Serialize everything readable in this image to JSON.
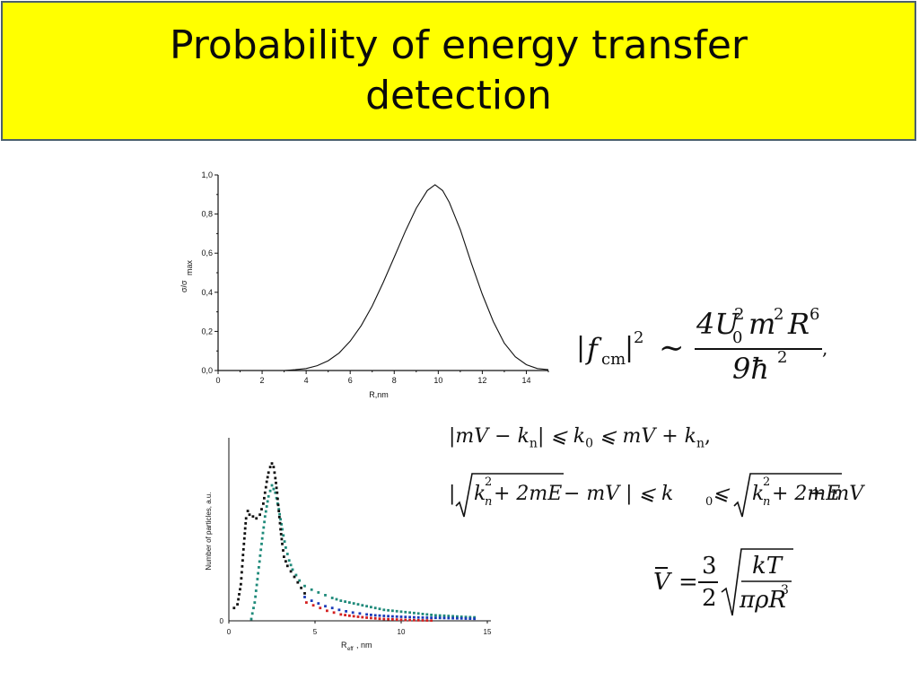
{
  "title": "Probability of energy transfer detection",
  "chart_data": [
    {
      "type": "line",
      "title": "",
      "xlabel": "R,nm",
      "ylabel_main": "σ/σ",
      "ylabel_sub": "max",
      "xlim": [
        0,
        15
      ],
      "ylim": [
        0,
        1.0
      ],
      "x_ticks": [
        0,
        2,
        4,
        6,
        8,
        10,
        12,
        14
      ],
      "x_tick_labels": [
        "0",
        "2",
        "4",
        "6",
        "8",
        "10",
        "12",
        "14"
      ],
      "y_ticks": [
        0,
        0.2,
        0.4,
        0.6,
        0.8,
        1.0
      ],
      "y_tick_labels": [
        "0,0",
        "0,2",
        "0,4",
        "0,6",
        "0,8",
        "1,0"
      ],
      "grid": false,
      "series": [
        {
          "color": "#111111",
          "x": [
            3,
            3.5,
            4,
            4.5,
            5,
            5.5,
            6,
            6.5,
            7,
            7.5,
            8,
            8.5,
            9,
            9.5,
            9.85,
            10.2,
            10.5,
            11,
            11.5,
            12,
            12.5,
            13,
            13.5,
            14,
            14.5,
            15
          ],
          "y": [
            0.0,
            0.004,
            0.01,
            0.025,
            0.05,
            0.09,
            0.15,
            0.23,
            0.33,
            0.45,
            0.58,
            0.71,
            0.83,
            0.92,
            0.95,
            0.92,
            0.86,
            0.72,
            0.55,
            0.39,
            0.25,
            0.14,
            0.07,
            0.03,
            0.01,
            0.004
          ]
        }
      ]
    },
    {
      "type": "scatter",
      "title": "",
      "xlabel": "R",
      "xlabel_sub": "eff",
      "xlabel_unit": ", nm",
      "ylabel": "Number of particles, a.u.",
      "xlim": [
        0,
        15
      ],
      "ylim": [
        0,
        1
      ],
      "x_ticks": [
        0,
        5,
        10,
        15
      ],
      "x_tick_labels": [
        "0",
        "5",
        "10",
        "15"
      ],
      "y_ticks": [
        0
      ],
      "y_tick_labels": [
        "0"
      ],
      "grid": false,
      "series": [
        {
          "color": "#111111",
          "x": [
            0.3,
            0.5,
            0.7,
            0.8,
            0.9,
            1.0,
            1.1,
            1.2,
            1.4,
            1.6,
            1.8,
            2.0,
            2.1,
            2.2,
            2.3,
            2.4,
            2.5,
            2.6,
            2.7,
            2.8,
            2.9,
            3.0,
            3.1,
            3.2,
            3.4,
            3.6,
            3.8,
            4.0,
            4.2,
            4.4,
            4.6
          ],
          "y": [
            0.07,
            0.09,
            0.2,
            0.33,
            0.45,
            0.56,
            0.6,
            0.58,
            0.57,
            0.56,
            0.58,
            0.64,
            0.7,
            0.76,
            0.81,
            0.84,
            0.86,
            0.84,
            0.78,
            0.7,
            0.6,
            0.5,
            0.42,
            0.35,
            0.3,
            0.27,
            0.24,
            0.21,
            0.18,
            0.15,
            0.13
          ]
        },
        {
          "color": "#1f8a7a",
          "x": [
            1.3,
            1.5,
            1.7,
            1.9,
            2.1,
            2.3,
            2.5,
            2.7,
            2.9,
            3.1,
            3.3,
            3.5,
            3.7,
            3.9,
            4.1,
            4.4,
            4.8,
            5.2,
            5.6,
            6.0,
            6.5,
            7.0,
            7.5,
            8.0,
            8.5,
            9.0,
            9.5,
            10.0,
            10.5,
            11.0,
            11.5,
            12.0,
            12.5,
            13.0,
            13.5,
            14.0,
            14.5
          ],
          "y": [
            0.01,
            0.1,
            0.26,
            0.42,
            0.57,
            0.68,
            0.74,
            0.7,
            0.61,
            0.5,
            0.4,
            0.33,
            0.28,
            0.25,
            0.22,
            0.19,
            0.17,
            0.155,
            0.14,
            0.125,
            0.11,
            0.1,
            0.09,
            0.08,
            0.07,
            0.06,
            0.055,
            0.05,
            0.045,
            0.04,
            0.035,
            0.03,
            0.028,
            0.025,
            0.022,
            0.02,
            0.018
          ]
        },
        {
          "color": "#1a3ab8",
          "x": [
            4.4,
            4.8,
            5.2,
            5.6,
            6.0,
            6.4,
            6.8,
            7.2,
            7.6,
            8.0,
            8.5,
            9.0,
            9.5,
            10.0,
            10.5,
            11.0,
            11.5,
            12.0,
            12.5,
            13.0,
            13.5,
            14.0,
            14.5
          ],
          "y": [
            0.13,
            0.11,
            0.095,
            0.08,
            0.07,
            0.06,
            0.052,
            0.045,
            0.04,
            0.035,
            0.03,
            0.027,
            0.024,
            0.022,
            0.02,
            0.018,
            0.017,
            0.016,
            0.015,
            0.014,
            0.013,
            0.012,
            0.011
          ]
        },
        {
          "color": "#d42020",
          "x": [
            4.5,
            4.9,
            5.3,
            5.7,
            6.1,
            6.5,
            7.0,
            7.5,
            8.0,
            8.5,
            9.0,
            9.5,
            10.0,
            10.5,
            11.0,
            11.5,
            12.0
          ],
          "y": [
            0.1,
            0.085,
            0.07,
            0.055,
            0.045,
            0.035,
            0.028,
            0.022,
            0.017,
            0.013,
            0.01,
            0.008,
            0.006,
            0.004,
            0.003,
            0.002,
            0.001
          ]
        }
      ]
    }
  ],
  "equations": {
    "fcm": {
      "lhs_f": "f",
      "lhs_sub": "cm",
      "lhs_sup": "2",
      "relation": "∼",
      "num": "4U",
      "num_sub": "0",
      "num_sup": "2",
      "num_m": "m",
      "num_m_sup": "2",
      "num_R": "R",
      "num_R_sup": "6",
      "den": "9ħ",
      "den_sup": "2",
      "trail": ","
    },
    "ineq1": {
      "part1": "|mV − k",
      "part1_sub": "n",
      "part2": "| ⩽ k",
      "part2_sub": "0",
      "part3": " ⩽ mV + k",
      "part3_sub": "n",
      "trail": ","
    },
    "ineq2": {
      "open": "|",
      "root_k": "k",
      "root_k_sub": "n",
      "root_k_sup": "2",
      "root_rest": " + 2mE",
      "mid": " − mV | ⩽ k",
      "mid_sub": "0",
      "mid2": " ⩽ ",
      "root2_k": "k",
      "root2_k_sub": "n",
      "root2_k_sup": "2",
      "root2_rest": " + 2mE",
      "tail": " + mV"
    },
    "vbar": {
      "lhs": "V",
      "eq": "=",
      "num": "3",
      "den": "2",
      "root_num": "kT",
      "root_den": "πρR",
      "root_den_sup": "3"
    }
  }
}
